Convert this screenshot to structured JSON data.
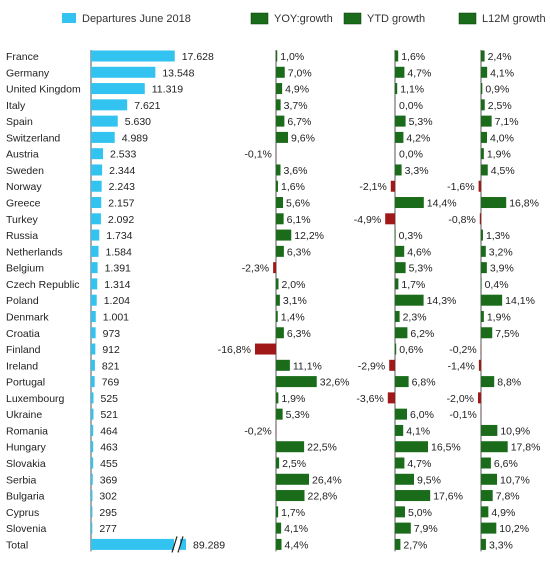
{
  "chart_data": {
    "type": "bar",
    "legend": {
      "departures": "Departures June 2018",
      "yoy": "YOY:growth",
      "ytd": "YTD growth",
      "l12m": "L12M growth"
    },
    "colors": {
      "departures": "#33C3F0",
      "positive": "#1A6B1A",
      "negative": "#A01818",
      "axis": "#555555"
    },
    "categories": [
      "France",
      "Germany",
      "United Kingdom",
      "Italy",
      "Spain",
      "Switzerland",
      "Austria",
      "Sweden",
      "Norway",
      "Greece",
      "Turkey",
      "Russia",
      "Netherlands",
      "Belgium",
      "Czech Republic",
      "Poland",
      "Denmark",
      "Croatia",
      "Finland",
      "Ireland",
      "Portugal",
      "Luxembourg",
      "Ukraine",
      "Romania",
      "Hungary",
      "Slovakia",
      "Serbia",
      "Bulgaria",
      "Cyprus",
      "Slovenia",
      "Total"
    ],
    "departures": [
      17628,
      13548,
      11319,
      7621,
      5630,
      4989,
      2533,
      2344,
      2243,
      2157,
      2092,
      1734,
      1584,
      1391,
      1314,
      1204,
      1001,
      973,
      912,
      821,
      769,
      525,
      521,
      464,
      463,
      455,
      369,
      302,
      295,
      277,
      89289
    ],
    "departures_labels": [
      "17.628",
      "13.548",
      "11.319",
      "7.621",
      "5.630",
      "4.989",
      "2.533",
      "2.344",
      "2.243",
      "2.157",
      "2.092",
      "1.734",
      "1.584",
      "1.391",
      "1.314",
      "1.204",
      "1.001",
      "973",
      "912",
      "821",
      "769",
      "525",
      "521",
      "464",
      "463",
      "455",
      "369",
      "302",
      "295",
      "277",
      "89.289"
    ],
    "yoy": [
      1.0,
      7.0,
      4.9,
      3.7,
      6.7,
      9.6,
      -0.1,
      3.6,
      1.6,
      5.6,
      6.1,
      12.2,
      6.3,
      -2.3,
      2.0,
      3.1,
      1.4,
      6.3,
      -16.8,
      11.1,
      32.6,
      1.9,
      5.3,
      -0.2,
      22.5,
      2.5,
      26.4,
      22.8,
      1.7,
      4.1,
      4.4
    ],
    "yoy_labels": [
      "1,0%",
      "7,0%",
      "4,9%",
      "3,7%",
      "6,7%",
      "9,6%",
      "-0,1%",
      "3,6%",
      "1,6%",
      "5,6%",
      "6,1%",
      "12,2%",
      "6,3%",
      "-2,3%",
      "2,0%",
      "3,1%",
      "1,4%",
      "6,3%",
      "-16,8%",
      "11,1%",
      "32,6%",
      "1,9%",
      "5,3%",
      "-0,2%",
      "22,5%",
      "2,5%",
      "26,4%",
      "22,8%",
      "1,7%",
      "4,1%",
      "4,4%"
    ],
    "ytd": [
      1.6,
      4.7,
      1.1,
      0.0,
      5.3,
      4.2,
      0.0,
      3.3,
      -2.1,
      14.4,
      -4.9,
      0.3,
      4.6,
      5.3,
      1.7,
      14.3,
      2.3,
      6.2,
      0.6,
      -2.9,
      6.8,
      -3.6,
      6.0,
      4.1,
      16.5,
      4.7,
      9.5,
      17.6,
      5.0,
      7.9,
      2.7
    ],
    "ytd_labels": [
      "1,6%",
      "4,7%",
      "1,1%",
      "0,0%",
      "5,3%",
      "4,2%",
      "0,0%",
      "3,3%",
      "-2,1%",
      "14,4%",
      "-4,9%",
      "0,3%",
      "4,6%",
      "5,3%",
      "1,7%",
      "14,3%",
      "2,3%",
      "6,2%",
      "0,6%",
      "-2,9%",
      "6,8%",
      "-3,6%",
      "6,0%",
      "4,1%",
      "16,5%",
      "4,7%",
      "9,5%",
      "17,6%",
      "5,0%",
      "7,9%",
      "2,7%"
    ],
    "l12m": [
      2.4,
      4.1,
      0.9,
      2.5,
      7.1,
      4.0,
      1.9,
      4.5,
      -1.6,
      16.8,
      -0.8,
      1.3,
      3.2,
      3.9,
      0.4,
      14.1,
      1.9,
      7.5,
      -0.2,
      -1.4,
      8.8,
      -2.0,
      -0.1,
      10.9,
      17.8,
      6.6,
      10.7,
      7.8,
      4.9,
      10.2,
      3.3
    ],
    "l12m_labels": [
      "2,4%",
      "4,1%",
      "0,9%",
      "2,5%",
      "7,1%",
      "4,0%",
      "1,9%",
      "4,5%",
      "-1,6%",
      "16,8%",
      "-0,8%",
      "1,3%",
      "3,2%",
      "3,9%",
      "0,4%",
      "14,1%",
      "1,9%",
      "7,5%",
      "-0,2%",
      "-1,4%",
      "8,8%",
      "-2,0%",
      "-0,1%",
      "10,9%",
      "17,8%",
      "6,6%",
      "10,7%",
      "7,8%",
      "4,9%",
      "10,2%",
      "3,3%"
    ]
  }
}
